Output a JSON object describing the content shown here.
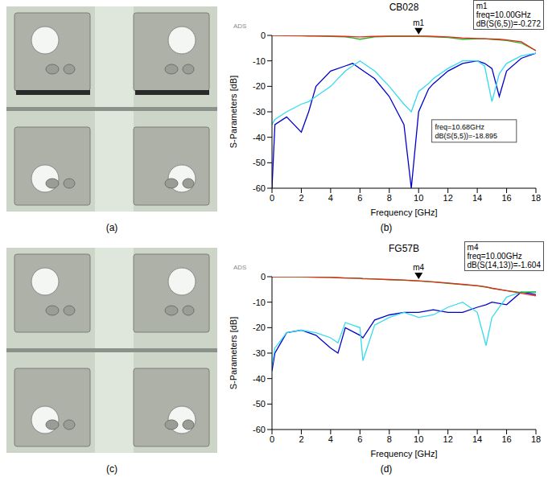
{
  "chart_data": [
    {
      "panel": "(b)",
      "type": "line",
      "title": "CB028",
      "watermark": "ADS",
      "x_label": "Frequency [GHz]",
      "y_label": "S-Parameters [dB]",
      "grid": false,
      "xlim": [
        0,
        18
      ],
      "xticks": [
        0,
        2,
        4,
        6,
        8,
        10,
        12,
        14,
        16,
        18
      ],
      "ylim": [
        -60,
        0
      ],
      "yticks": [
        -60,
        -50,
        -40,
        -30,
        -20,
        -10,
        0
      ],
      "x": [
        0,
        0.2,
        1,
        2,
        2.5,
        3,
        4,
        5,
        5.5,
        6,
        7,
        8,
        9,
        9.5,
        10,
        10.68,
        11,
        12,
        13,
        14,
        14.5,
        15,
        15.5,
        16,
        17,
        18
      ],
      "series": [
        {
          "color": "#0000cd",
          "values": [
            -60,
            -35,
            -32,
            -38,
            -30,
            -20,
            -14,
            -12,
            -11,
            -13,
            -17,
            -24,
            -35,
            -60,
            -30,
            -21,
            -19,
            -14,
            -11,
            -10,
            -11,
            -13,
            -24,
            -14,
            -9,
            -7
          ]
        },
        {
          "color": "#33dcef",
          "values": [
            -35,
            -33,
            -30,
            -27,
            -26,
            -24,
            -20,
            -14,
            -12,
            -10,
            -14,
            -20,
            -27,
            -30,
            -22,
            -18.9,
            -17,
            -13,
            -10,
            -10,
            -12,
            -26,
            -15,
            -11,
            -8,
            -7
          ]
        },
        {
          "color": "#22b422",
          "values": [
            0,
            0,
            -0.1,
            -0.2,
            -0.3,
            -0.3,
            -0.4,
            -0.6,
            -1,
            -1.5,
            -0.6,
            -0.4,
            -0.4,
            -0.4,
            -0.4,
            -0.5,
            -0.6,
            -0.8,
            -1.5,
            -1.4,
            -1.3,
            -1.6,
            -1.8,
            -2,
            -3,
            -6
          ]
        },
        {
          "color": "#e8281e",
          "values": [
            0,
            0,
            -0.1,
            -0.1,
            -0.2,
            -0.2,
            -0.3,
            -0.4,
            -0.5,
            -0.6,
            -0.4,
            -0.3,
            -0.3,
            -0.3,
            -0.272,
            -0.3,
            -0.4,
            -0.6,
            -1,
            -1.2,
            -1.3,
            -1.4,
            -1.5,
            -1.8,
            -2.5,
            -6
          ]
        }
      ],
      "marker_readout": {
        "name": "m1",
        "x": 10,
        "y": -0.272,
        "text": [
          "m1",
          "freq=10.00GHz",
          "dB(S(6,5))=-0.272"
        ]
      },
      "annotations": [
        {
          "x": 10.68,
          "y": -18.895,
          "text": [
            "freq=10.68GHz",
            "dB(S(5,5))=-18.895"
          ]
        }
      ]
    },
    {
      "panel": "(d)",
      "type": "line",
      "title": "FG57B",
      "watermark": "ADS",
      "x_label": "Frequency [GHz]",
      "y_label": "S-Parameters [dB]",
      "grid": false,
      "xlim": [
        0,
        18
      ],
      "xticks": [
        0,
        2,
        4,
        6,
        8,
        10,
        12,
        14,
        16,
        18
      ],
      "ylim": [
        -60,
        0
      ],
      "yticks": [
        -60,
        -50,
        -40,
        -30,
        -20,
        -10,
        0
      ],
      "x": [
        0,
        0.2,
        1,
        2,
        3,
        4,
        4.5,
        5,
        6,
        6.2,
        7,
        8,
        9,
        10,
        11,
        12,
        13,
        14,
        14.6,
        15,
        16,
        17,
        18
      ],
      "series": [
        {
          "color": "#0000cd",
          "values": [
            -37,
            -30,
            -22,
            -21,
            -23,
            -28,
            -30,
            -20,
            -23,
            -24,
            -17,
            -15,
            -14,
            -14,
            -13,
            -14,
            -14,
            -12,
            -11,
            -10,
            -11,
            -6,
            -7
          ]
        },
        {
          "color": "#33dcef",
          "values": [
            -35,
            -28,
            -22,
            -21,
            -22,
            -24,
            -26,
            -18,
            -20,
            -33,
            -19,
            -16,
            -14,
            -16,
            -15,
            -12,
            -10,
            -14,
            -27,
            -16,
            -8,
            -6,
            -6
          ]
        },
        {
          "color": "#22b422",
          "values": [
            0,
            0,
            0,
            -0.1,
            -0.2,
            -0.3,
            -0.4,
            -0.5,
            -0.6,
            -0.7,
            -0.9,
            -1.2,
            -1.4,
            -1.7,
            -2.1,
            -2.6,
            -3.1,
            -3.6,
            -4.1,
            -4.6,
            -5.5,
            -6.2,
            -6
          ]
        },
        {
          "color": "#e8281e",
          "values": [
            0,
            0,
            0,
            0,
            -0.2,
            -0.3,
            -0.4,
            -0.5,
            -0.7,
            -0.8,
            -0.9,
            -1.1,
            -1.3,
            -1.604,
            -2,
            -2.5,
            -3,
            -3.5,
            -4,
            -4.5,
            -5.5,
            -6.5,
            -7.5
          ]
        }
      ],
      "marker_readout": {
        "name": "m4",
        "x": 10,
        "y": -1.604,
        "text": [
          "m4",
          "freq=10.00GHz",
          "dB(S(14,13))=-1.604"
        ]
      }
    }
  ],
  "photos": [
    {
      "panel": "(a)"
    },
    {
      "panel": "(c)"
    }
  ]
}
